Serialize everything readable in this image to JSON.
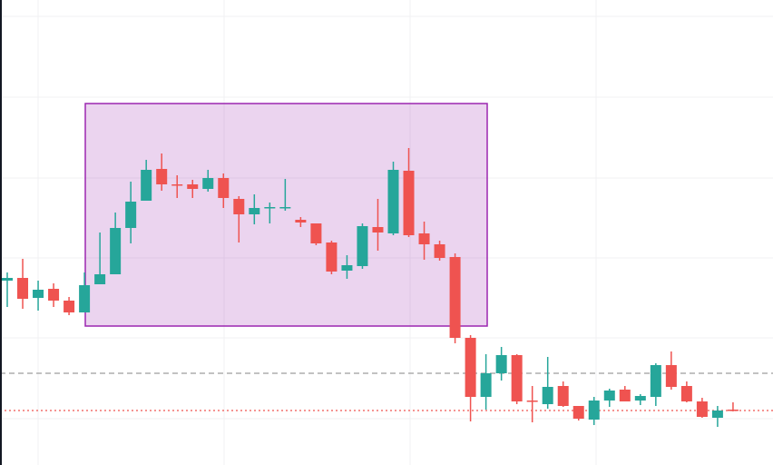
{
  "chart_data": {
    "type": "candlestick",
    "ylim": [
      0,
      512
    ],
    "yticks": [
      51,
      140,
      228,
      316,
      405,
      494
    ],
    "grid": true,
    "up_color": "#26a69a",
    "down_color": "#ef5350",
    "open": [
      203,
      206,
      184,
      194,
      181,
      168,
      199,
      210,
      261,
      291,
      326,
      309,
      309,
      304,
      316,
      293,
      276,
      283,
      283,
      270,
      266,
      245,
      214,
      219,
      262,
      255,
      324,
      255,
      243,
      229,
      140,
      75,
      101,
      121,
      71,
      67,
      87,
      65,
      50,
      71,
      83,
      71,
      75,
      110,
      87,
      70,
      52,
      61
    ],
    "high": [
      212,
      227,
      203,
      200,
      185,
      212,
      256,
      278,
      312,
      336,
      343,
      319,
      314,
      325,
      321,
      296,
      298,
      289,
      315,
      273,
      266,
      247,
      231,
      266,
      293,
      334,
      349,
      268,
      247,
      233,
      143,
      122,
      130,
      122,
      87,
      119,
      92,
      65,
      75,
      84,
      87,
      78,
      112,
      125,
      92,
      74,
      65,
      69
    ],
    "low": [
      174,
      172,
      170,
      174,
      165,
      168,
      199,
      210,
      244,
      291,
      302,
      294,
      294,
      301,
      283,
      245,
      265,
      266,
      280,
      262,
      242,
      210,
      205,
      216,
      236,
      253,
      251,
      226,
      225,
      134,
      48,
      61,
      93,
      67,
      47,
      62,
      64,
      49,
      44,
      64,
      70,
      66,
      65,
      83,
      69,
      52,
      42,
      59
    ],
    "close": [
      206,
      183,
      193,
      181,
      168,
      198,
      210,
      261,
      290,
      325,
      309,
      308,
      304,
      316,
      294,
      276,
      283,
      284,
      284,
      267,
      244,
      213,
      220,
      263,
      256,
      325,
      253,
      243,
      228,
      140,
      75,
      101,
      121,
      70,
      70,
      86,
      65,
      51,
      71,
      82,
      70,
      76,
      110,
      86,
      70,
      53,
      60,
      60
    ],
    "reference_lines": [
      {
        "value": 101,
        "color": "#9e9e9e",
        "style": "dashed"
      },
      {
        "value": 60,
        "color": "#ef5350",
        "style": "dotted"
      }
    ]
  }
}
